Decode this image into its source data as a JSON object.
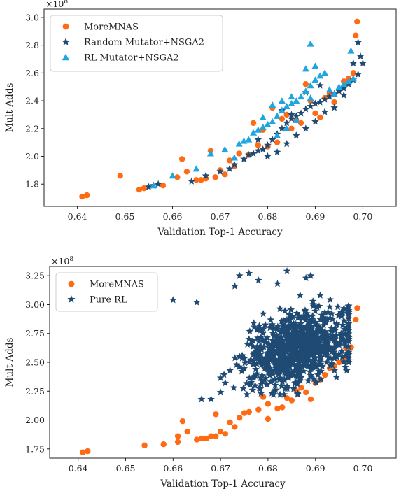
{
  "colors": {
    "moremnas": "#ff6a13",
    "random": "#1e4a73",
    "rl": "#1fa6e0",
    "axis": "#222222"
  },
  "chart_data": [
    {
      "type": "scatter",
      "xlabel": "Validation Top-1 Accuracy",
      "ylabel": "Mult-Adds",
      "multiplier": "×10",
      "multiplier_exp": "8",
      "xlim": [
        0.633,
        0.707
      ],
      "ylim": [
        1.64,
        3.06
      ],
      "xticks": [
        0.64,
        0.65,
        0.66,
        0.67,
        0.68,
        0.69,
        0.7
      ],
      "xtick_labels": [
        "0.64",
        "0.65",
        "0.66",
        "0.67",
        "0.68",
        "0.69",
        "0.70"
      ],
      "yticks": [
        1.8,
        2.0,
        2.2,
        2.4,
        2.6,
        2.8,
        3.0
      ],
      "ytick_labels": [
        "1.8",
        "2.0",
        "2.2",
        "2.4",
        "2.6",
        "2.8",
        "3.0"
      ],
      "legend_position": "top-left",
      "series": [
        {
          "name": "MoreMNAS",
          "marker": "circle",
          "color": "#ff6a13",
          "points": [
            [
              0.641,
              1.71
            ],
            [
              0.642,
              1.72
            ],
            [
              0.649,
              1.86
            ],
            [
              0.653,
              1.76
            ],
            [
              0.654,
              1.77
            ],
            [
              0.658,
              1.79
            ],
            [
              0.661,
              1.85
            ],
            [
              0.662,
              1.98
            ],
            [
              0.663,
              1.89
            ],
            [
              0.665,
              1.83
            ],
            [
              0.666,
              1.83
            ],
            [
              0.667,
              1.84
            ],
            [
              0.668,
              2.04
            ],
            [
              0.669,
              1.85
            ],
            [
              0.67,
              1.9
            ],
            [
              0.671,
              1.87
            ],
            [
              0.672,
              1.97
            ],
            [
              0.673,
              1.93
            ],
            [
              0.674,
              2.02
            ],
            [
              0.676,
              2.01
            ],
            [
              0.677,
              2.24
            ],
            [
              0.678,
              2.08
            ],
            [
              0.679,
              2.19
            ],
            [
              0.68,
              2.07
            ],
            [
              0.681,
              2.35
            ],
            [
              0.682,
              2.1
            ],
            [
              0.683,
              2.27
            ],
            [
              0.684,
              2.3
            ],
            [
              0.685,
              2.2
            ],
            [
              0.686,
              2.26
            ],
            [
              0.687,
              2.24
            ],
            [
              0.688,
              2.52
            ],
            [
              0.689,
              2.4
            ],
            [
              0.69,
              2.31
            ],
            [
              0.691,
              2.28
            ],
            [
              0.692,
              2.42
            ],
            [
              0.693,
              2.45
            ],
            [
              0.694,
              2.39
            ],
            [
              0.695,
              2.48
            ],
            [
              0.696,
              2.54
            ],
            [
              0.697,
              2.56
            ],
            [
              0.698,
              2.6
            ],
            [
              0.6985,
              2.87
            ],
            [
              0.6988,
              2.97
            ],
            [
              0.697,
              2.53
            ]
          ]
        },
        {
          "name": "Random Mutator+NSGA2",
          "marker": "star",
          "color": "#1e4a73",
          "points": [
            [
              0.655,
              1.78
            ],
            [
              0.656,
              1.79
            ],
            [
              0.657,
              1.8
            ],
            [
              0.664,
              1.82
            ],
            [
              0.667,
              1.86
            ],
            [
              0.67,
              1.89
            ],
            [
              0.672,
              1.91
            ],
            [
              0.673,
              1.94
            ],
            [
              0.675,
              1.98
            ],
            [
              0.676,
              2.01
            ],
            [
              0.677,
              2.02
            ],
            [
              0.678,
              2.04
            ],
            [
              0.679,
              2.05
            ],
            [
              0.68,
              2.08
            ],
            [
              0.681,
              2.12
            ],
            [
              0.682,
              2.16
            ],
            [
              0.683,
              2.2
            ],
            [
              0.684,
              2.24
            ],
            [
              0.685,
              2.27
            ],
            [
              0.686,
              2.29
            ],
            [
              0.687,
              2.31
            ],
            [
              0.688,
              2.34
            ],
            [
              0.689,
              2.36
            ],
            [
              0.69,
              2.38
            ],
            [
              0.691,
              2.39
            ],
            [
              0.692,
              2.41
            ],
            [
              0.693,
              2.43
            ],
            [
              0.694,
              2.45
            ],
            [
              0.695,
              2.47
            ],
            [
              0.696,
              2.49
            ],
            [
              0.697,
              2.52
            ],
            [
              0.698,
              2.55
            ],
            [
              0.699,
              2.59
            ],
            [
              0.6995,
              2.72
            ],
            [
              0.7,
              2.67
            ],
            [
              0.699,
              2.82
            ],
            [
              0.678,
              2.12
            ],
            [
              0.68,
              2.0
            ],
            [
              0.682,
              2.03
            ],
            [
              0.684,
              2.09
            ],
            [
              0.686,
              2.15
            ],
            [
              0.688,
              2.2
            ],
            [
              0.69,
              2.25
            ],
            [
              0.692,
              2.32
            ],
            [
              0.694,
              2.35
            ],
            [
              0.683,
              2.33
            ],
            [
              0.685,
              2.3
            ],
            [
              0.688,
              2.46
            ],
            [
              0.691,
              2.51
            ],
            [
              0.696,
              2.44
            ],
            [
              0.698,
              2.67
            ]
          ]
        },
        {
          "name": "RL Mutator+NSGA2",
          "marker": "triangle",
          "color": "#1fa6e0",
          "points": [
            [
              0.656,
              1.79
            ],
            [
              0.66,
              1.86
            ],
            [
              0.665,
              1.91
            ],
            [
              0.668,
              2.02
            ],
            [
              0.671,
              2.05
            ],
            [
              0.673,
              1.99
            ],
            [
              0.674,
              2.09
            ],
            [
              0.675,
              2.11
            ],
            [
              0.676,
              2.12
            ],
            [
              0.677,
              2.17
            ],
            [
              0.678,
              2.19
            ],
            [
              0.679,
              2.21
            ],
            [
              0.68,
              2.23
            ],
            [
              0.681,
              2.25
            ],
            [
              0.682,
              2.29
            ],
            [
              0.683,
              2.33
            ],
            [
              0.684,
              2.36
            ],
            [
              0.685,
              2.38
            ],
            [
              0.686,
              2.4
            ],
            [
              0.687,
              2.43
            ],
            [
              0.688,
              2.47
            ],
            [
              0.689,
              2.51
            ],
            [
              0.69,
              2.55
            ],
            [
              0.691,
              2.58
            ],
            [
              0.692,
              2.6
            ],
            [
              0.693,
              2.48
            ],
            [
              0.694,
              2.45
            ],
            [
              0.695,
              2.5
            ],
            [
              0.696,
              2.52
            ],
            [
              0.697,
              2.54
            ],
            [
              0.698,
              2.56
            ],
            [
              0.6975,
              2.76
            ],
            [
              0.688,
              2.63
            ],
            [
              0.689,
              2.81
            ],
            [
              0.69,
              2.65
            ],
            [
              0.681,
              2.37
            ],
            [
              0.683,
              2.4
            ],
            [
              0.685,
              2.43
            ],
            [
              0.679,
              2.28
            ],
            [
              0.682,
              2.15
            ],
            [
              0.684,
              2.2
            ],
            [
              0.686,
              2.26
            ],
            [
              0.689,
              2.42
            ]
          ]
        }
      ]
    },
    {
      "type": "scatter",
      "xlabel": "Validation Top-1 Accuracy",
      "ylabel": "Mult-Adds",
      "multiplier": "×10",
      "multiplier_exp": "8",
      "xlim": [
        0.634,
        0.707
      ],
      "ylim": [
        1.67,
        3.33
      ],
      "xticks": [
        0.64,
        0.65,
        0.66,
        0.67,
        0.68,
        0.69,
        0.7
      ],
      "xtick_labels": [
        "0.64",
        "0.65",
        "0.66",
        "0.67",
        "0.68",
        "0.69",
        "0.70"
      ],
      "yticks": [
        1.75,
        2.0,
        2.25,
        2.5,
        2.75,
        3.0,
        3.25
      ],
      "ytick_labels": [
        "1.75",
        "2.00",
        "2.25",
        "2.50",
        "2.75",
        "3.00",
        "3.25"
      ],
      "legend_position": "top-left",
      "series": [
        {
          "name": "MoreMNAS",
          "marker": "circle",
          "color": "#ff6a13",
          "points": [
            [
              0.641,
              1.72
            ],
            [
              0.642,
              1.73
            ],
            [
              0.654,
              1.78
            ],
            [
              0.658,
              1.79
            ],
            [
              0.661,
              1.81
            ],
            [
              0.661,
              1.86
            ],
            [
              0.662,
              1.99
            ],
            [
              0.663,
              1.9
            ],
            [
              0.665,
              1.83
            ],
            [
              0.666,
              1.84
            ],
            [
              0.667,
              1.84
            ],
            [
              0.668,
              1.86
            ],
            [
              0.669,
              2.05
            ],
            [
              0.669,
              1.86
            ],
            [
              0.67,
              1.9
            ],
            [
              0.671,
              1.88
            ],
            [
              0.672,
              1.98
            ],
            [
              0.673,
              1.94
            ],
            [
              0.674,
              2.02
            ],
            [
              0.675,
              2.06
            ],
            [
              0.676,
              2.07
            ],
            [
              0.678,
              2.09
            ],
            [
              0.679,
              2.2
            ],
            [
              0.68,
              2.14
            ],
            [
              0.68,
              2.01
            ],
            [
              0.682,
              2.1
            ],
            [
              0.683,
              2.11
            ],
            [
              0.684,
              2.19
            ],
            [
              0.685,
              2.17
            ],
            [
              0.686,
              2.25
            ],
            [
              0.687,
              2.28
            ],
            [
              0.688,
              2.24
            ],
            [
              0.689,
              2.18
            ],
            [
              0.69,
              2.32
            ],
            [
              0.691,
              2.35
            ],
            [
              0.692,
              2.39
            ],
            [
              0.693,
              2.45
            ],
            [
              0.694,
              2.47
            ],
            [
              0.695,
              2.5
            ],
            [
              0.696,
              2.52
            ],
            [
              0.697,
              2.58
            ],
            [
              0.6975,
              2.63
            ],
            [
              0.6985,
              2.87
            ],
            [
              0.6988,
              2.97
            ],
            [
              0.6965,
              2.62
            ]
          ]
        },
        {
          "name": "Pure RL",
          "marker": "star",
          "color": "#1e4a73",
          "generated": {
            "count": 820,
            "center": [
              0.6865,
              2.62
            ],
            "spread": [
              0.0055,
              0.16
            ],
            "correlation": 0.35,
            "xlim": [
              0.67,
              0.697
            ],
            "ylim": [
              2.22,
              3.13
            ],
            "seed": 7
          },
          "points": [
            [
              0.66,
              3.04
            ],
            [
              0.665,
              3.02
            ],
            [
              0.676,
              3.27
            ],
            [
              0.678,
              3.21
            ],
            [
              0.684,
              3.29
            ],
            [
              0.689,
              3.25
            ],
            [
              0.688,
              3.23
            ],
            [
              0.674,
              3.25
            ],
            [
              0.673,
              3.16
            ],
            [
              0.682,
              3.18
            ],
            [
              0.668,
              2.18
            ],
            [
              0.67,
              2.24
            ],
            [
              0.671,
              2.32
            ],
            [
              0.672,
              2.43
            ],
            [
              0.666,
              2.18
            ],
            [
              0.674,
              2.55
            ],
            [
              0.676,
              2.7
            ],
            [
              0.677,
              2.84
            ],
            [
              0.679,
              2.92
            ],
            [
              0.694,
              2.43
            ],
            [
              0.695,
              2.65
            ],
            [
              0.696,
              2.86
            ],
            [
              0.697,
              2.72
            ],
            [
              0.693,
              2.98
            ],
            [
              0.691,
              3.08
            ]
          ]
        }
      ]
    }
  ]
}
